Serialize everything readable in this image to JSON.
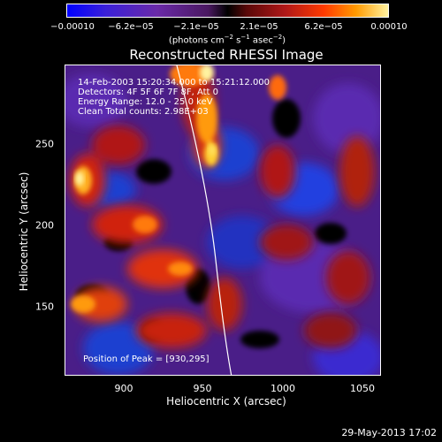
{
  "colorbar": {
    "ticks": [
      "−0.00010",
      "−6.2e−05",
      "−2.1e−05",
      "2.1e−05",
      "6.2e−05",
      "0.00010"
    ],
    "units_parts": [
      "(photons cm",
      "−2",
      " s",
      "−1",
      " asec",
      "−2",
      ")"
    ]
  },
  "title": "Reconstructed RHESSI Image",
  "info": {
    "line1": "14-Feb-2003 15:20:34.000 to 15:21:12.000",
    "line2": "Detectors: 4F 5F 6F 7F 8F, Att 0",
    "line3": "Energy Range: 12.0 - 25.0 keV",
    "line4": "Clean    Total counts: 2.98E+03"
  },
  "peak": "Position of Peak = [930,295]",
  "x_axis": {
    "label": "Heliocentric X (arcsec)",
    "ticks": [
      "900",
      "950",
      "1000",
      "1050"
    ]
  },
  "y_axis": {
    "label": "Heliocentric Y (arcsec)",
    "ticks": [
      "250",
      "200",
      "150"
    ]
  },
  "timestamp": "29-May-2013 17:02",
  "colors": {
    "background": "#000000",
    "negative": "#5a2ab0",
    "deep_negative": "#1a40d0",
    "positive_mid": "#d02010",
    "positive_high": "#ff8a10",
    "peak": "#fff3a0",
    "limb": "#ffffff"
  }
}
